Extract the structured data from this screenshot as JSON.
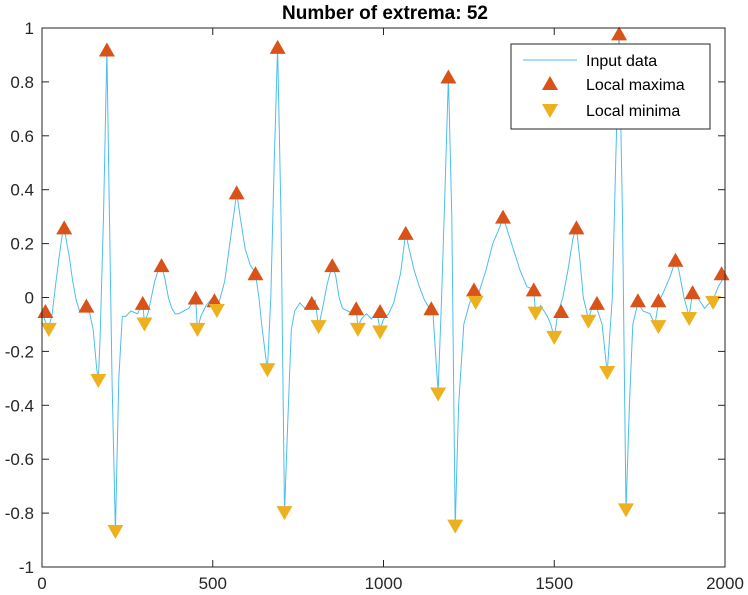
{
  "chart_data": {
    "type": "line",
    "title": "Number of extrema: 52",
    "xlim": [
      0,
      2000
    ],
    "ylim": [
      -1,
      1
    ],
    "x_ticks": [
      0,
      500,
      1000,
      1500,
      2000
    ],
    "y_ticks": [
      -1,
      -0.8,
      -0.6,
      -0.4,
      -0.2,
      0,
      0.2,
      0.4,
      0.6,
      0.8,
      1
    ],
    "x_tick_labels": [
      "0",
      "500",
      "1000",
      "1500",
      "2000"
    ],
    "y_tick_labels": [
      "-1",
      "-0.8",
      "-0.6",
      "-0.4",
      "-0.2",
      "0",
      "0.2",
      "0.4",
      "0.6",
      "0.8",
      "1"
    ],
    "grid": false,
    "legend_position": "top-right",
    "colors": {
      "line": "#4DBEEE",
      "maxima": "#D95319",
      "minima": "#EDB120",
      "axis": "#262626"
    },
    "series": [
      {
        "name": "Input data",
        "kind": "line",
        "points": [
          [
            0,
            -0.05
          ],
          [
            10,
            -0.09
          ],
          [
            20,
            -0.11
          ],
          [
            30,
            -0.06
          ],
          [
            40,
            0.05
          ],
          [
            50,
            0.15
          ],
          [
            60,
            0.24
          ],
          [
            65,
            0.26
          ],
          [
            70,
            0.22
          ],
          [
            80,
            0.15
          ],
          [
            90,
            0.06
          ],
          [
            100,
            -0.01
          ],
          [
            110,
            -0.05
          ],
          [
            120,
            -0.04
          ],
          [
            130,
            -0.03
          ],
          [
            140,
            -0.06
          ],
          [
            150,
            -0.12
          ],
          [
            160,
            -0.26
          ],
          [
            165,
            -0.31
          ],
          [
            170,
            -0.15
          ],
          [
            180,
            0.3
          ],
          [
            190,
            0.92
          ],
          [
            195,
            0.5
          ],
          [
            205,
            -0.3
          ],
          [
            215,
            -0.87
          ],
          [
            225,
            -0.3
          ],
          [
            235,
            -0.07
          ],
          [
            245,
            -0.07
          ],
          [
            260,
            -0.05
          ],
          [
            280,
            -0.06
          ],
          [
            295,
            -0.02
          ],
          [
            300,
            -0.09
          ],
          [
            310,
            -0.06
          ],
          [
            320,
            0.0
          ],
          [
            330,
            0.06
          ],
          [
            340,
            0.1
          ],
          [
            350,
            0.12
          ],
          [
            360,
            0.07
          ],
          [
            370,
            0.0
          ],
          [
            380,
            -0.04
          ],
          [
            390,
            -0.06
          ],
          [
            400,
            -0.06
          ],
          [
            415,
            -0.05
          ],
          [
            430,
            -0.04
          ],
          [
            450,
            0.0
          ],
          [
            455,
            -0.12
          ],
          [
            465,
            -0.07
          ],
          [
            480,
            -0.03
          ],
          [
            500,
            0.0
          ],
          [
            505,
            -0.01
          ],
          [
            512,
            -0.05
          ],
          [
            520,
            -0.01
          ],
          [
            535,
            0.06
          ],
          [
            550,
            0.2
          ],
          [
            565,
            0.34
          ],
          [
            570,
            0.39
          ],
          [
            580,
            0.3
          ],
          [
            595,
            0.18
          ],
          [
            610,
            0.12
          ],
          [
            625,
            0.09
          ],
          [
            635,
            0.0
          ],
          [
            645,
            -0.12
          ],
          [
            660,
            -0.27
          ],
          [
            670,
            0.0
          ],
          [
            680,
            0.5
          ],
          [
            690,
            0.93
          ],
          [
            700,
            0.3
          ],
          [
            710,
            -0.8
          ],
          [
            720,
            -0.45
          ],
          [
            730,
            -0.12
          ],
          [
            740,
            -0.05
          ],
          [
            755,
            -0.02
          ],
          [
            770,
            -0.04
          ],
          [
            790,
            -0.02
          ],
          [
            800,
            -0.01
          ],
          [
            810,
            -0.11
          ],
          [
            820,
            -0.05
          ],
          [
            835,
            0.05
          ],
          [
            850,
            0.12
          ],
          [
            860,
            0.08
          ],
          [
            870,
            0.0
          ],
          [
            880,
            -0.04
          ],
          [
            895,
            -0.05
          ],
          [
            910,
            -0.06
          ],
          [
            920,
            -0.04
          ],
          [
            925,
            -0.11
          ],
          [
            935,
            -0.08
          ],
          [
            950,
            -0.06
          ],
          [
            965,
            -0.08
          ],
          [
            980,
            -0.05
          ],
          [
            990,
            -0.12
          ],
          [
            1000,
            -0.08
          ],
          [
            1015,
            -0.06
          ],
          [
            1030,
            -0.02
          ],
          [
            1050,
            0.09
          ],
          [
            1065,
            0.24
          ],
          [
            1075,
            0.18
          ],
          [
            1090,
            0.1
          ],
          [
            1105,
            0.04
          ],
          [
            1120,
            -0.01
          ],
          [
            1135,
            -0.04
          ],
          [
            1145,
            -0.06
          ],
          [
            1160,
            -0.35
          ],
          [
            1170,
            0.0
          ],
          [
            1180,
            0.4
          ],
          [
            1190,
            0.82
          ],
          [
            1200,
            0.3
          ],
          [
            1210,
            -0.85
          ],
          [
            1220,
            -0.4
          ],
          [
            1235,
            -0.1
          ],
          [
            1250,
            -0.03
          ],
          [
            1265,
            0.03
          ],
          [
            1270,
            -0.02
          ],
          [
            1285,
            0.04
          ],
          [
            1300,
            0.1
          ],
          [
            1320,
            0.2
          ],
          [
            1340,
            0.26
          ],
          [
            1350,
            0.3
          ],
          [
            1360,
            0.26
          ],
          [
            1380,
            0.18
          ],
          [
            1400,
            0.1
          ],
          [
            1420,
            0.04
          ],
          [
            1440,
            0.03
          ],
          [
            1445,
            -0.06
          ],
          [
            1460,
            -0.03
          ],
          [
            1480,
            -0.07
          ],
          [
            1490,
            -0.1
          ],
          [
            1500,
            -0.15
          ],
          [
            1510,
            -0.06
          ],
          [
            1525,
            0.0
          ],
          [
            1540,
            0.1
          ],
          [
            1555,
            0.22
          ],
          [
            1565,
            0.26
          ],
          [
            1575,
            0.14
          ],
          [
            1585,
            0.0
          ],
          [
            1600,
            -0.08
          ],
          [
            1615,
            -0.02
          ],
          [
            1625,
            -0.04
          ],
          [
            1640,
            -0.1
          ],
          [
            1655,
            -0.28
          ],
          [
            1670,
            0.0
          ],
          [
            1680,
            0.5
          ],
          [
            1690,
            0.98
          ],
          [
            1700,
            0.3
          ],
          [
            1710,
            -0.79
          ],
          [
            1720,
            -0.4
          ],
          [
            1730,
            -0.1
          ],
          [
            1745,
            -0.02
          ],
          [
            1760,
            -0.05
          ],
          [
            1780,
            -0.06
          ],
          [
            1795,
            -0.1
          ],
          [
            1805,
            -0.02
          ],
          [
            1820,
            0.02
          ],
          [
            1840,
            0.08
          ],
          [
            1855,
            0.14
          ],
          [
            1865,
            0.1
          ],
          [
            1880,
            0.0
          ],
          [
            1895,
            -0.07
          ],
          [
            1905,
            0.02
          ],
          [
            1920,
            0.0
          ],
          [
            1940,
            -0.04
          ],
          [
            1955,
            -0.02
          ],
          [
            1965,
            -0.01
          ],
          [
            1980,
            0.04
          ],
          [
            1990,
            0.06
          ],
          [
            2000,
            0.09
          ]
        ]
      },
      {
        "name": "Local maxima",
        "kind": "markers",
        "marker": "triangle-up",
        "points": [
          [
            10,
            -0.05
          ],
          [
            65,
            0.26
          ],
          [
            130,
            -0.03
          ],
          [
            190,
            0.92
          ],
          [
            295,
            -0.02
          ],
          [
            350,
            0.12
          ],
          [
            450,
            0.0
          ],
          [
            505,
            -0.01
          ],
          [
            570,
            0.39
          ],
          [
            625,
            0.09
          ],
          [
            690,
            0.93
          ],
          [
            790,
            -0.02
          ],
          [
            850,
            0.12
          ],
          [
            920,
            -0.04
          ],
          [
            990,
            -0.05
          ],
          [
            1065,
            0.24
          ],
          [
            1140,
            -0.04
          ],
          [
            1190,
            0.82
          ],
          [
            1265,
            0.03
          ],
          [
            1350,
            0.3
          ],
          [
            1440,
            0.03
          ],
          [
            1520,
            -0.05
          ],
          [
            1565,
            0.26
          ],
          [
            1625,
            -0.02
          ],
          [
            1690,
            0.98
          ],
          [
            1745,
            -0.01
          ],
          [
            1805,
            -0.01
          ],
          [
            1855,
            0.14
          ],
          [
            1905,
            0.02
          ],
          [
            1990,
            0.09
          ]
        ]
      },
      {
        "name": "Local minima",
        "kind": "markers",
        "marker": "triangle-down",
        "points": [
          [
            20,
            -0.12
          ],
          [
            165,
            -0.31
          ],
          [
            215,
            -0.87
          ],
          [
            300,
            -0.1
          ],
          [
            455,
            -0.12
          ],
          [
            512,
            -0.05
          ],
          [
            660,
            -0.27
          ],
          [
            710,
            -0.8
          ],
          [
            810,
            -0.11
          ],
          [
            925,
            -0.12
          ],
          [
            990,
            -0.13
          ],
          [
            1160,
            -0.36
          ],
          [
            1210,
            -0.85
          ],
          [
            1270,
            -0.02
          ],
          [
            1445,
            -0.06
          ],
          [
            1500,
            -0.15
          ],
          [
            1600,
            -0.09
          ],
          [
            1655,
            -0.28
          ],
          [
            1710,
            -0.79
          ],
          [
            1805,
            -0.11
          ],
          [
            1895,
            -0.08
          ],
          [
            1965,
            -0.02
          ]
        ]
      }
    ]
  }
}
